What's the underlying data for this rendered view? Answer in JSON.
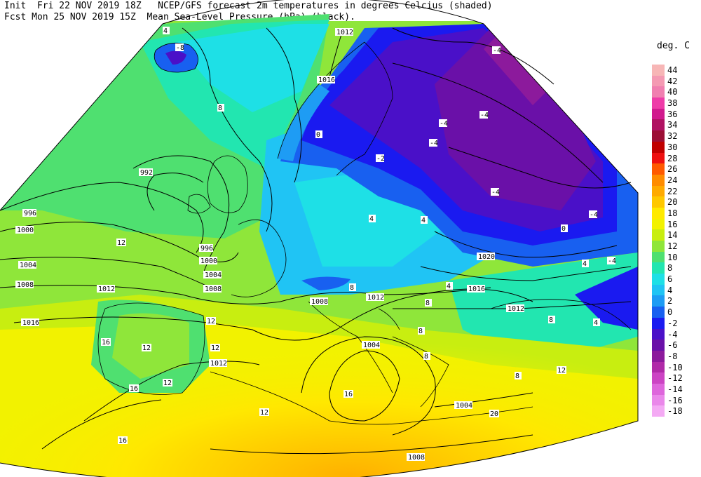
{
  "header": {
    "line1": "Init  Fri 22 NOV 2019 18Z   NCEP/GFS forecast 2m temperatures in degrees Celcius (shaded)",
    "line2": "Fcst Mon 25 NOV 2019 15Z  Mean Sea-Level Pressure (hPa) (black)."
  },
  "legend": {
    "title": "deg. C",
    "items": [
      {
        "value": "44",
        "color": "#f7b6b6"
      },
      {
        "value": "42",
        "color": "#f49ab3"
      },
      {
        "value": "40",
        "color": "#f07fb0"
      },
      {
        "value": "38",
        "color": "#ee3ca8"
      },
      {
        "value": "36",
        "color": "#d11a8e"
      },
      {
        "value": "34",
        "color": "#b01262"
      },
      {
        "value": "32",
        "color": "#9c0f35"
      },
      {
        "value": "30",
        "color": "#c00000"
      },
      {
        "value": "28",
        "color": "#ee1010"
      },
      {
        "value": "26",
        "color": "#ff5a00"
      },
      {
        "value": "24",
        "color": "#ff8c00"
      },
      {
        "value": "22",
        "color": "#ffaa00"
      },
      {
        "value": "20",
        "color": "#ffc800"
      },
      {
        "value": "18",
        "color": "#ffea00"
      },
      {
        "value": "16",
        "color": "#f2f200"
      },
      {
        "value": "14",
        "color": "#c8ee10"
      },
      {
        "value": "12",
        "color": "#8fe63a"
      },
      {
        "value": "10",
        "color": "#4fe070"
      },
      {
        "value": "8",
        "color": "#22e6b0"
      },
      {
        "value": "6",
        "color": "#1ee0e6"
      },
      {
        "value": "4",
        "color": "#20c4f4"
      },
      {
        "value": "2",
        "color": "#1e9cf4"
      },
      {
        "value": "0",
        "color": "#1860f0"
      },
      {
        "value": "-2",
        "color": "#1a1af0"
      },
      {
        "value": "-4",
        "color": "#4a10c8"
      },
      {
        "value": "-6",
        "color": "#6a10a8"
      },
      {
        "value": "-8",
        "color": "#8c1a9c"
      },
      {
        "value": "-10",
        "color": "#b02aa8"
      },
      {
        "value": "-12",
        "color": "#cc44c4"
      },
      {
        "value": "-14",
        "color": "#de66dc"
      },
      {
        "value": "-16",
        "color": "#ea88ea"
      },
      {
        "value": "-18",
        "color": "#f4aaf4"
      }
    ]
  },
  "isobar_labels": [
    "1012",
    "1016",
    "992",
    "996",
    "1000",
    "996",
    "1000",
    "1004",
    "1008",
    "1012",
    "1004",
    "1008",
    "1012",
    "1016",
    "1012",
    "1008",
    "1004",
    "1020",
    "1016",
    "1012",
    "1004",
    "1008"
  ],
  "temp_labels": [
    "-4",
    "-4",
    "8",
    "-8",
    "-4",
    "-4",
    "-4",
    "-4",
    "-4",
    "0",
    "4",
    "4",
    "12",
    "12",
    "12",
    "16",
    "12",
    "12",
    "16",
    "16",
    "12",
    "20",
    "16",
    "8",
    "8",
    "12",
    "4",
    "4",
    "8",
    "8",
    "8",
    "4",
    "-2",
    "0",
    "4",
    "8"
  ]
}
